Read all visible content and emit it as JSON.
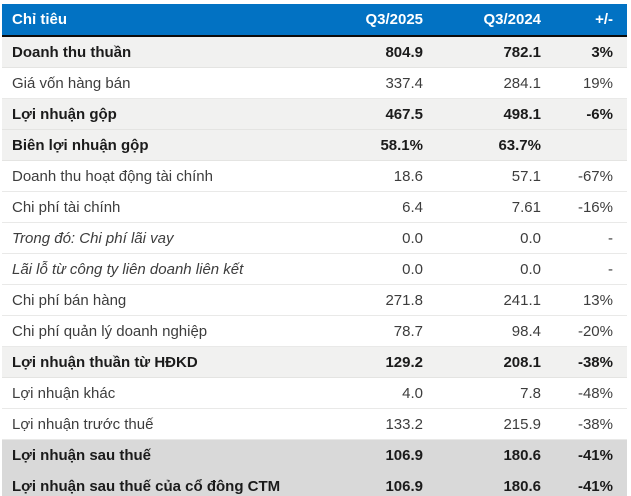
{
  "colors": {
    "header_background": "#0272C3",
    "header_text": "#FFFFFF",
    "highlight_row_background": "#F1F1F0",
    "total_row_background": "#D9D9D9",
    "rule_black": "#0C0C0C"
  },
  "chart_data": {
    "type": "table",
    "columns": [
      "Chỉ tiêu",
      "Q3/2025",
      "Q3/2024",
      "+/-"
    ],
    "rows": [
      [
        "Doanh thu thuần",
        "804.9",
        "782.1",
        "3%"
      ],
      [
        "Giá vốn hàng bán",
        "337.4",
        "284.1",
        "19%"
      ],
      [
        "Lợi nhuận gộp",
        "467.5",
        "498.1",
        "-6%"
      ],
      [
        "Biên lợi nhuận gộp",
        "58.1%",
        "63.7%",
        ""
      ],
      [
        "Doanh thu hoạt động tài chính",
        "18.6",
        "57.1",
        "-67%"
      ],
      [
        "Chi phí tài chính",
        "6.4",
        "7.61",
        "-16%"
      ],
      [
        "Trong đó: Chi phí lãi vay",
        "0.0",
        "0.0",
        "-"
      ],
      [
        "Lãi lỗ từ công ty liên doanh liên kết",
        "0.0",
        "0.0",
        "-"
      ],
      [
        "Chi phí bán hàng",
        "271.8",
        "241.1",
        "13%"
      ],
      [
        "Chi phí quản lý doanh nghiệp",
        "78.7",
        "98.4",
        "-20%"
      ],
      [
        "Lợi nhuận thuần từ HĐKD",
        "129.2",
        "208.1",
        "-38%"
      ],
      [
        "Lợi nhuận khác",
        "4.0",
        "7.8",
        "-48%"
      ],
      [
        "Lợi nhuận trước thuế",
        "133.2",
        "215.9",
        "-38%"
      ],
      [
        "Lợi nhuận sau thuế",
        "106.9",
        "180.6",
        "-41%"
      ],
      [
        "Lợi nhuận sau thuế của cổ đông CTM",
        "106.9",
        "180.6",
        "-41%"
      ]
    ]
  },
  "presentation": {
    "row_variants": [
      "bold-light",
      "plain",
      "bold-light",
      "bold-light",
      "plain",
      "plain",
      "italic",
      "italic",
      "plain",
      "plain",
      "bold-light",
      "plain",
      "plain",
      "bold-dark",
      "bold-dark"
    ]
  }
}
